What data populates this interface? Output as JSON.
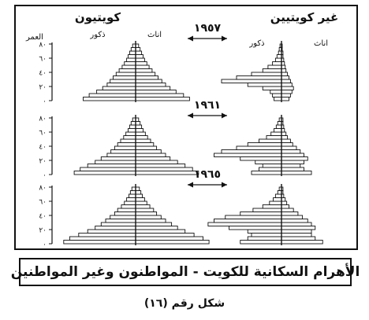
{
  "chart_data": {
    "type": "bar",
    "subtype": "population-pyramid",
    "title": "الأهرام السكانية للكويت - المواطنون وغير المواطنين",
    "y_axis_label": "العمر",
    "y_ticks": [
      "٨٠",
      "٦٠",
      "٤٠",
      "٢٠",
      "٠"
    ],
    "ylim": [
      0,
      80
    ],
    "group_labels": {
      "kuwaiti": "كويتيون",
      "non_kuwaiti": "غير كويتيين"
    },
    "sex_labels": {
      "male": "ذكور",
      "female": "اناث"
    },
    "age_bands": [
      "0-4",
      "5-9",
      "10-14",
      "15-19",
      "20-24",
      "25-29",
      "30-34",
      "35-39",
      "40-44",
      "45-49",
      "50-54",
      "55-59",
      "60-64",
      "65-69",
      "70-74",
      "75+"
    ],
    "units": "relative bar length (no scale printed)",
    "panels": [
      {
        "year": "١٩٥٧",
        "kuwaiti": {
          "male": [
            70,
            62,
            52,
            44,
            38,
            34,
            30,
            26,
            22,
            18,
            15,
            12,
            10,
            8,
            6,
            4
          ],
          "female": [
            72,
            64,
            54,
            46,
            40,
            35,
            30,
            26,
            22,
            18,
            15,
            12,
            10,
            8,
            6,
            4
          ]
        },
        "non_kuwaiti": {
          "male": [
            10,
            12,
            15,
            25,
            45,
            80,
            60,
            40,
            25,
            18,
            12,
            8,
            6,
            4,
            3,
            2
          ],
          "female": [
            10,
            12,
            14,
            16,
            14,
            12,
            10,
            8,
            6,
            5,
            4,
            3,
            2,
            2,
            1,
            1
          ]
        }
      },
      {
        "year": "١٩٦١",
        "kuwaiti": {
          "male": [
            82,
            74,
            64,
            54,
            46,
            38,
            33,
            28,
            24,
            20,
            16,
            13,
            10,
            8,
            6,
            4
          ],
          "female": [
            84,
            76,
            66,
            56,
            46,
            40,
            34,
            28,
            24,
            20,
            16,
            13,
            10,
            8,
            6,
            4
          ]
        },
        "non_kuwaiti": {
          "male": [
            40,
            30,
            25,
            35,
            55,
            90,
            80,
            60,
            45,
            30,
            20,
            14,
            10,
            7,
            5,
            3
          ],
          "female": [
            40,
            30,
            25,
            30,
            35,
            30,
            25,
            20,
            15,
            12,
            8,
            6,
            4,
            3,
            2,
            2
          ]
        }
      },
      {
        "year": "١٩٦٥",
        "kuwaiti": {
          "male": [
            96,
            88,
            76,
            64,
            54,
            46,
            40,
            34,
            28,
            24,
            19,
            15,
            12,
            9,
            7,
            5
          ],
          "female": [
            98,
            90,
            78,
            66,
            56,
            48,
            40,
            34,
            28,
            24,
            19,
            15,
            12,
            9,
            7,
            5
          ]
        },
        "non_kuwaiti": {
          "male": [
            55,
            45,
            40,
            45,
            70,
            98,
            90,
            75,
            55,
            38,
            25,
            16,
            11,
            8,
            5,
            3
          ],
          "female": [
            55,
            45,
            40,
            40,
            45,
            40,
            35,
            28,
            22,
            16,
            10,
            7,
            5,
            3,
            2,
            2
          ]
        }
      }
    ]
  },
  "figure_label": "شكل رقم (١٦)"
}
